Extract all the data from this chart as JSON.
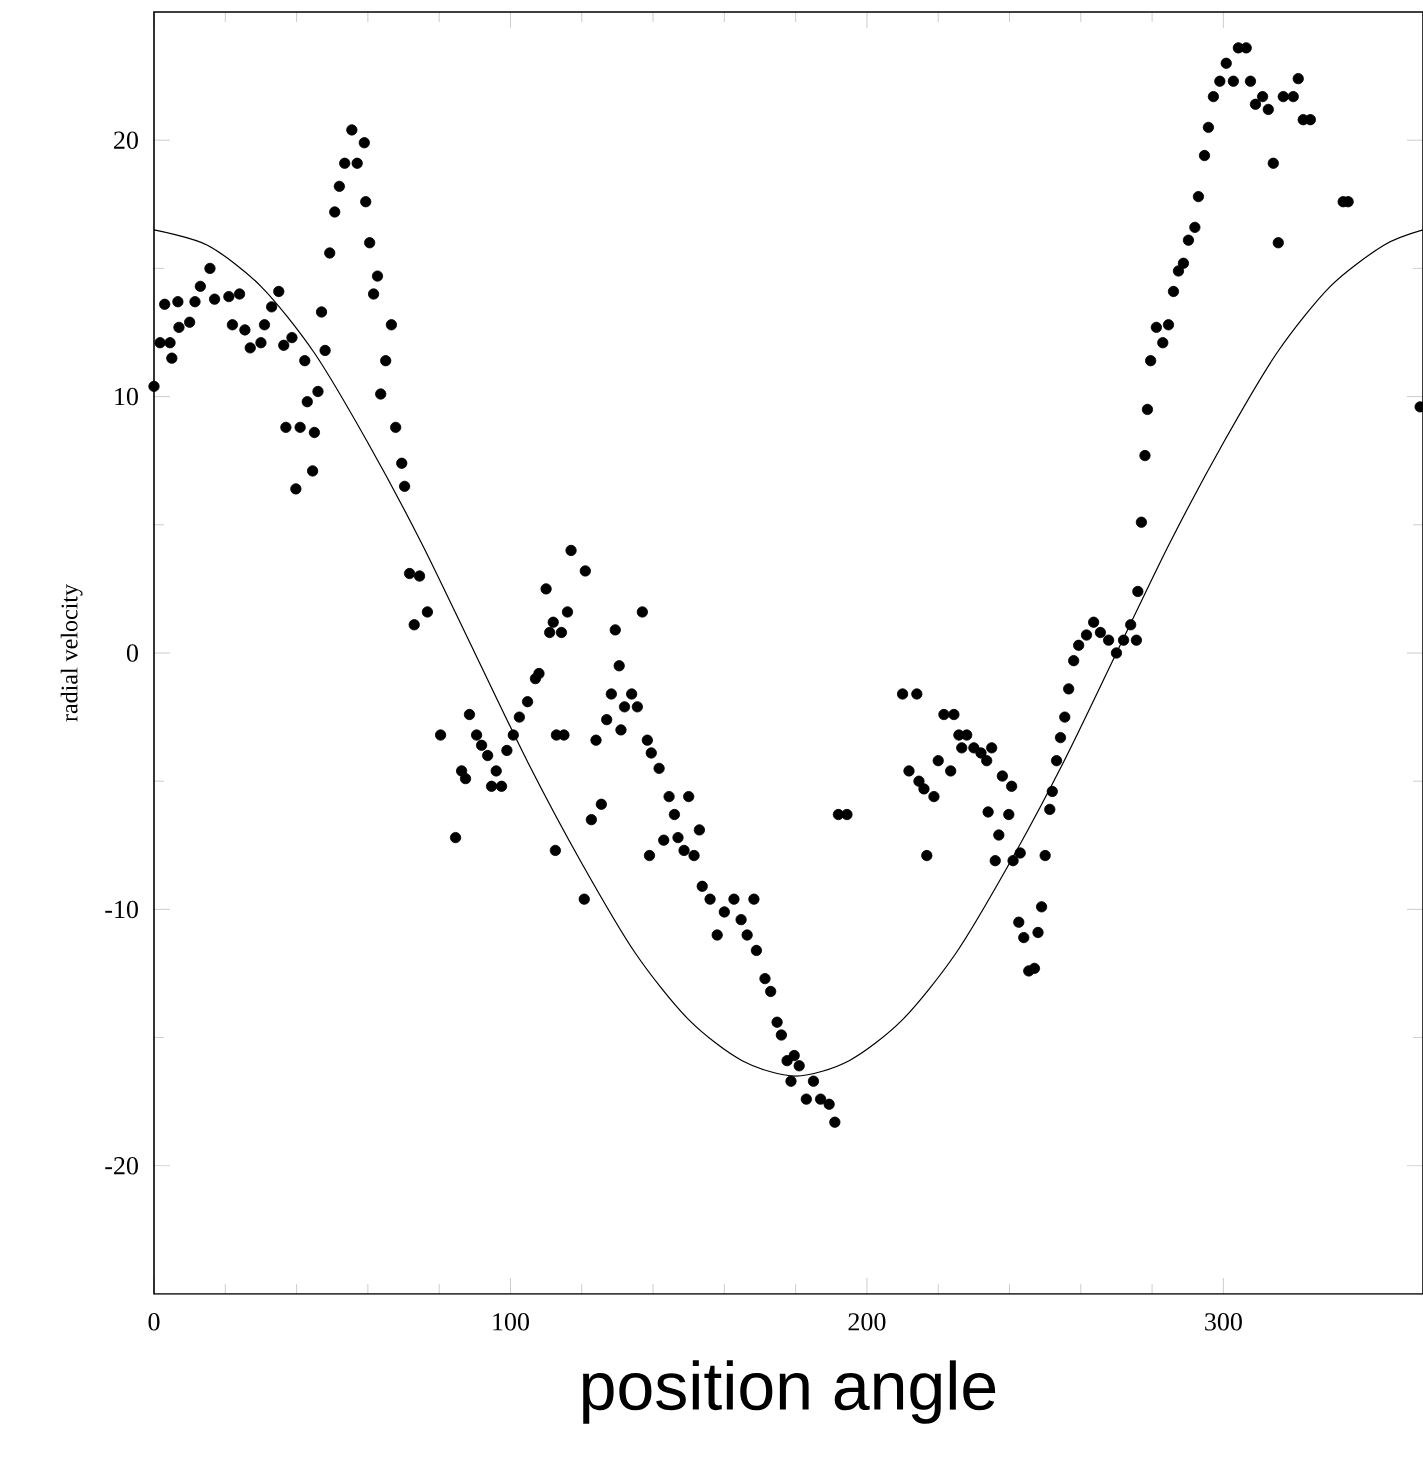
{
  "chart_data": {
    "type": "scatter",
    "xlabel": "position angle",
    "ylabel": "radial velocity",
    "marker": "circle",
    "xlim": [
      0,
      356
    ],
    "ylim": [
      -25,
      25
    ],
    "xticks": [
      0,
      100,
      200,
      300
    ],
    "yticks": [
      -20,
      -10,
      0,
      10,
      20
    ],
    "series": [
      {
        "color": "#000000",
        "x": [
          0,
          1.7,
          3,
          4.5,
          5,
          6.7,
          7,
          10,
          11.5,
          13,
          15.7,
          17,
          21,
          22,
          24,
          25.5,
          27,
          30,
          31,
          33,
          35,
          36.4,
          37,
          38.7,
          39.8,
          41,
          42.3,
          43,
          44.5,
          45,
          46,
          47,
          48,
          49.3,
          50.7,
          52,
          53.5,
          55.5,
          57,
          59,
          59.4,
          60.5,
          61.6,
          62.7,
          63.6,
          65,
          66.6,
          67.8,
          69.5,
          70.3,
          71.7,
          73,
          74.5,
          76.7,
          80.4,
          84.6,
          86.3,
          87.4,
          88.5,
          90.5,
          91.9,
          93.6,
          94.7,
          96,
          97.5,
          99,
          100.8,
          102.5,
          104.8,
          107,
          108,
          110,
          111,
          112,
          112.9,
          112.6,
          115,
          114.3,
          116,
          117,
          121,
          120.7,
          122.7,
          124,
          125.5,
          127,
          128.3,
          129.4,
          130.5,
          131,
          132,
          134,
          135.6,
          137,
          138.4,
          139.5,
          139,
          141.7,
          143,
          144.5,
          146,
          147,
          148.7,
          150,
          151.5,
          153,
          153.8,
          156,
          158,
          160,
          162.7,
          164.7,
          166.4,
          168.3,
          169,
          171.4,
          173,
          174.8,
          176,
          177.6,
          178.7,
          179.6,
          181,
          183,
          185,
          187,
          189.4,
          191,
          192,
          194.4,
          210,
          214,
          211.8,
          214.6,
          216,
          216.8,
          218.8,
          220,
          221.6,
          224.4,
          223.5,
          225.8,
          226.6,
          228,
          230,
          232,
          233.6,
          234,
          235,
          236,
          237,
          238,
          239.8,
          240.6,
          241,
          242.6,
          243,
          244,
          245.4,
          247,
          248,
          249,
          250,
          251.3,
          252,
          253.2,
          254.3,
          255.5,
          256.6,
          258,
          259.4,
          261.6,
          263.6,
          265.5,
          267.8,
          270,
          272,
          274,
          276,
          275.6,
          277,
          278,
          278.7,
          279.6,
          281.2,
          283,
          284.6,
          286,
          287.4,
          288.8,
          290.2,
          292,
          293,
          294.7,
          295.8,
          297.2,
          299,
          300.8,
          302.8,
          304.2,
          306.4,
          307.6,
          309,
          311,
          312.6,
          314,
          315.4,
          316.8,
          319.6,
          321,
          322.4,
          324.4,
          333.6,
          335,
          355.2
        ],
        "values": [
          10.4,
          12.1,
          13.6,
          12.1,
          11.5,
          13.7,
          12.7,
          12.9,
          13.7,
          14.3,
          15,
          13.8,
          13.9,
          12.8,
          14,
          12.6,
          11.9,
          12.1,
          12.8,
          13.5,
          14.1,
          12,
          8.8,
          12.3,
          6.4,
          8.8,
          11.4,
          9.8,
          7.1,
          8.6,
          10.2,
          13.3,
          11.8,
          15.6,
          17.2,
          18.2,
          19.1,
          20.4,
          19.1,
          19.9,
          17.6,
          16,
          14,
          14.7,
          10.1,
          11.4,
          12.8,
          8.8,
          7.4,
          6.5,
          3.1,
          1.1,
          3,
          1.6,
          -3.2,
          -7.2,
          -4.6,
          -4.9,
          -2.4,
          -3.2,
          -3.6,
          -4,
          -5.2,
          -4.6,
          -5.2,
          -3.8,
          -3.2,
          -2.5,
          -1.9,
          -1,
          -0.8,
          2.5,
          0.8,
          1.2,
          -3.2,
          -7.7,
          -3.2,
          0.8,
          1.6,
          4,
          3.2,
          -9.6,
          -6.5,
          -3.4,
          -5.9,
          -2.6,
          -1.6,
          0.9,
          -0.5,
          -3,
          -2.1,
          -1.6,
          -2.1,
          1.6,
          -3.4,
          -3.9,
          -7.9,
          -4.5,
          -7.3,
          -5.6,
          -6.3,
          -7.2,
          -7.7,
          -5.6,
          -7.9,
          -6.9,
          -9.1,
          -9.6,
          -11,
          -10.1,
          -9.6,
          -10.4,
          -11,
          -9.6,
          -11.6,
          -12.7,
          -13.2,
          -14.4,
          -14.9,
          -15.9,
          -16.7,
          -15.7,
          -16.1,
          -17.4,
          -16.7,
          -17.4,
          -17.6,
          -18.3,
          -6.3,
          -6.3,
          -1.6,
          -1.6,
          -4.6,
          -5,
          -5.3,
          -7.9,
          -5.6,
          -4.2,
          -2.4,
          -2.4,
          -4.6,
          -3.2,
          -3.7,
          -3.2,
          -3.7,
          -3.9,
          -4.2,
          -6.2,
          -3.7,
          -8.1,
          -7.1,
          -4.8,
          -6.3,
          -5.2,
          -8.1,
          -10.5,
          -7.8,
          -11.1,
          -12.4,
          -12.3,
          -10.9,
          -9.9,
          -7.9,
          -6.1,
          -5.4,
          -4.2,
          -3.3,
          -2.5,
          -1.4,
          -0.3,
          0.3,
          0.7,
          1.2,
          0.8,
          0.5,
          0,
          0.5,
          1.1,
          2.4,
          0.5,
          5.1,
          7.7,
          9.5,
          11.4,
          12.7,
          12.1,
          12.8,
          14.1,
          14.9,
          15.2,
          16.1,
          16.6,
          17.8,
          19.4,
          20.5,
          21.7,
          22.3,
          23,
          22.3,
          23.6,
          23.6,
          22.3,
          21.4,
          21.7,
          21.2,
          19.1,
          16,
          21.7,
          21.7,
          22.4,
          20.8,
          20.8,
          17.6,
          17.6,
          9.6
        ]
      },
      {
        "type": "line",
        "color": "#000000",
        "marker": "none",
        "x": [
          0,
          15,
          30,
          45,
          60,
          75,
          90,
          105,
          120,
          135,
          150,
          165,
          180,
          195,
          210,
          225,
          240,
          255,
          270,
          285,
          300,
          315,
          330,
          345,
          356
        ],
        "values": [
          16.5,
          15.9,
          14.3,
          11.7,
          8.2,
          4.3,
          0,
          -4.3,
          -8.2,
          -11.7,
          -14.3,
          -15.9,
          -16.5,
          -15.9,
          -14.3,
          -11.7,
          -8.2,
          -4.3,
          0,
          4.3,
          8.2,
          11.7,
          14.3,
          15.9,
          16.5
        ]
      }
    ]
  }
}
